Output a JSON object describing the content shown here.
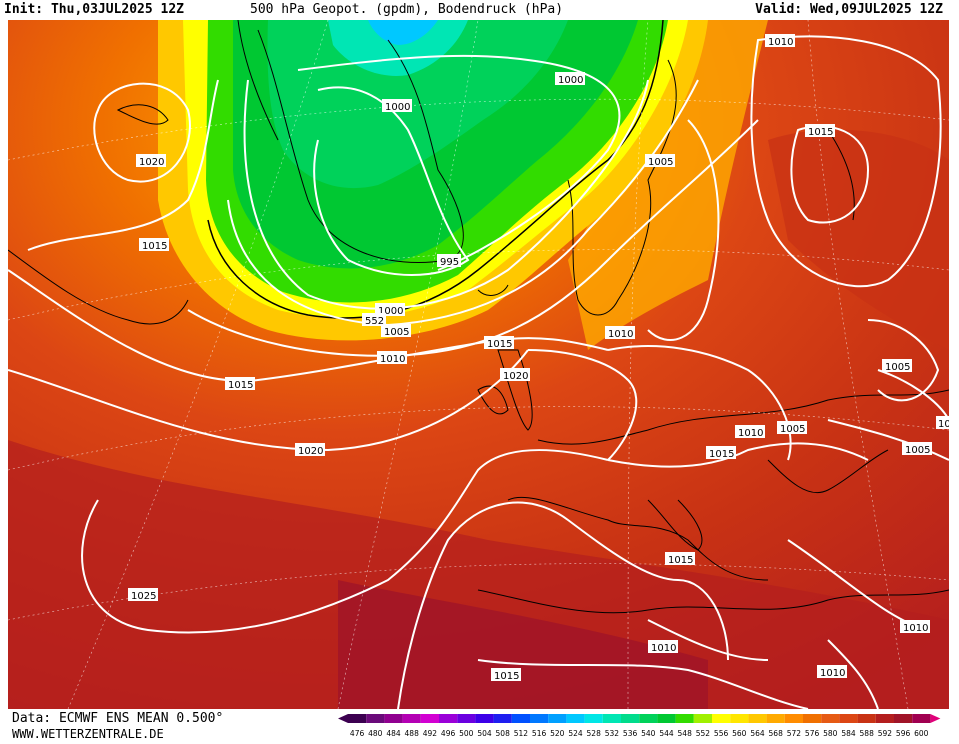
{
  "header": {
    "init": "Init: Thu,03JUL2025 12Z",
    "title": "500 hPa Geopot. (gpdm), Bodendruck (hPa)",
    "valid": "Valid: Wed,09JUL2025 12Z"
  },
  "footer": {
    "data": "Data: ECMWF ENS MEAN 0.500°",
    "site": "WWW.WETTERZENTRALE.DE"
  },
  "legend": {
    "values": [
      "476",
      "480",
      "484",
      "488",
      "492",
      "496",
      "500",
      "504",
      "508",
      "512",
      "516",
      "520",
      "524",
      "528",
      "532",
      "536",
      "540",
      "544",
      "548",
      "552",
      "556",
      "560",
      "564",
      "568",
      "572",
      "576",
      "580",
      "584",
      "588",
      "592",
      "596",
      "600"
    ],
    "colors": [
      "#3c0050",
      "#6a0a7a",
      "#900090",
      "#b400b4",
      "#d200d2",
      "#9a00d8",
      "#6a00e0",
      "#3c00e8",
      "#1e1ef0",
      "#0050ff",
      "#0078ff",
      "#00a0ff",
      "#00c8ff",
      "#00e6e6",
      "#00e6b4",
      "#00dc8c",
      "#00d25a",
      "#00c832",
      "#32dc00",
      "#a0f000",
      "#ffff00",
      "#ffe600",
      "#ffc800",
      "#ffaa00",
      "#ff8c00",
      "#f07000",
      "#e65a14",
      "#dc4614",
      "#c83214",
      "#b41e1e",
      "#a01428",
      "#a00050"
    ],
    "left_arrow_color": "#3c0050",
    "right_arrow_color": "#e0007a"
  },
  "isobars": [
    {
      "text": "1020"
    },
    {
      "text": "1015"
    },
    {
      "text": "1000"
    },
    {
      "text": "1000"
    },
    {
      "text": "995"
    },
    {
      "text": "1000"
    },
    {
      "text": "552"
    },
    {
      "text": "1005"
    },
    {
      "text": "1010"
    },
    {
      "text": "1015"
    },
    {
      "text": "1020"
    },
    {
      "text": "1005"
    },
    {
      "text": "1010"
    },
    {
      "text": "1015"
    },
    {
      "text": "1015"
    },
    {
      "text": "1020"
    },
    {
      "text": "1010"
    },
    {
      "text": "1010"
    },
    {
      "text": "1005"
    },
    {
      "text": "1015"
    },
    {
      "text": "1005"
    },
    {
      "text": "1005"
    },
    {
      "text": "10"
    },
    {
      "text": "1015"
    },
    {
      "text": "1025"
    },
    {
      "text": "1010"
    },
    {
      "text": "1010"
    },
    {
      "text": "1015"
    },
    {
      "text": "1010"
    }
  ]
}
